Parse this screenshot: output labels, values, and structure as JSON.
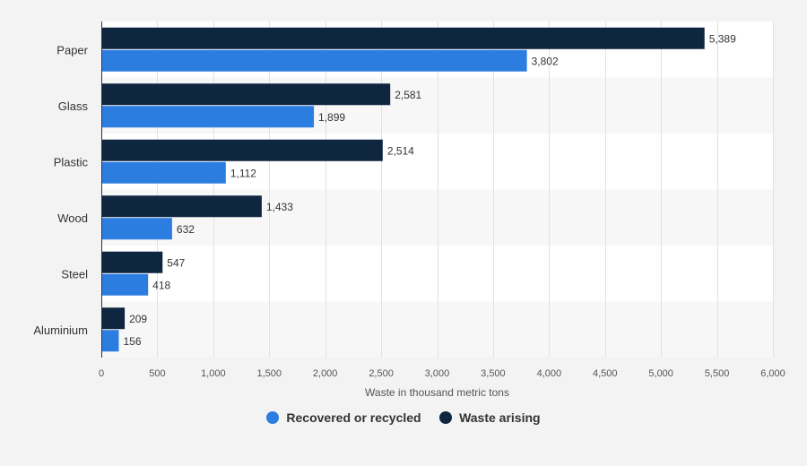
{
  "chart_data": {
    "type": "bar",
    "orientation": "horizontal",
    "categories": [
      "Paper",
      "Glass",
      "Plastic",
      "Wood",
      "Steel",
      "Aluminium"
    ],
    "series": [
      {
        "name": "Waste arising",
        "values": [
          5389,
          2581,
          2514,
          1433,
          547,
          209
        ],
        "color": "#0f2641"
      },
      {
        "name": "Recovered or recycled",
        "values": [
          3802,
          1899,
          1112,
          632,
          418,
          156
        ],
        "color": "#2b7de0"
      }
    ],
    "value_labels": [
      [
        "5,389",
        "2,581",
        "2,514",
        "1,433",
        "547",
        "209"
      ],
      [
        "3,802",
        "1,899",
        "1,112",
        "632",
        "418",
        "156"
      ]
    ],
    "xlabel": "Waste in thousand metric tons",
    "ylabel": "",
    "xlim": [
      0,
      6000
    ],
    "xticks": [
      0,
      500,
      1000,
      1500,
      2000,
      2500,
      3000,
      3500,
      4000,
      4500,
      5000,
      5500,
      6000
    ],
    "xtick_labels": [
      "0",
      "500",
      "1,000",
      "1,500",
      "2,000",
      "2,500",
      "3,000",
      "3,500",
      "4,000",
      "4,500",
      "5,000",
      "5,500",
      "6,000"
    ],
    "grid": true,
    "legend_position": "bottom-center"
  },
  "legend": [
    {
      "label": "Recovered or recycled",
      "color": "#2b7de0"
    },
    {
      "label": "Waste arising",
      "color": "#0f2641"
    }
  ]
}
